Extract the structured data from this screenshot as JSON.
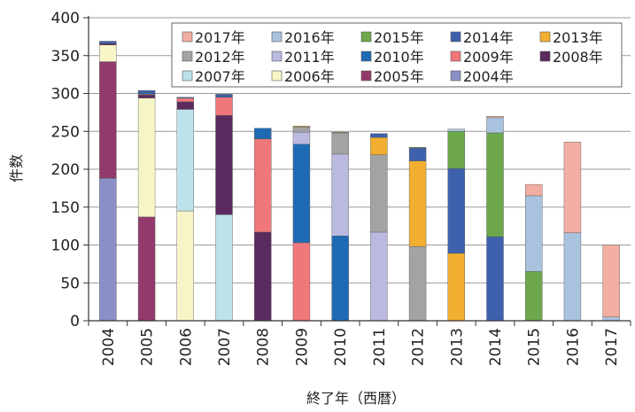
{
  "chart_data": {
    "type": "bar",
    "stacked": true,
    "title": "",
    "xlabel": "終了年（西暦）",
    "ylabel": "件数",
    "ylim": [
      0,
      400
    ],
    "yticks": [
      0,
      50,
      100,
      150,
      200,
      250,
      300,
      350,
      400
    ],
    "grid": true,
    "legend_position": "top-right",
    "categories": [
      "2004",
      "2005",
      "2006",
      "2007",
      "2008",
      "2009",
      "2010",
      "2011",
      "2012",
      "2013",
      "2014",
      "2015",
      "2016",
      "2017"
    ],
    "legend_order": [
      "2017年",
      "2016年",
      "2015年",
      "2014年",
      "2013年",
      "2012年",
      "2011年",
      "2010年",
      "2009年",
      "2008年",
      "2007年",
      "2006年",
      "2005年",
      "2004年"
    ],
    "series": [
      {
        "name": "2004年",
        "color": "#8b8fc7",
        "values": [
          188,
          0,
          0,
          0,
          0,
          0,
          0,
          0,
          0,
          0,
          0,
          0,
          0,
          0
        ]
      },
      {
        "name": "2005年",
        "color": "#923a6b",
        "values": [
          154,
          137,
          0,
          0,
          0,
          0,
          0,
          0,
          0,
          0,
          0,
          0,
          0,
          0
        ]
      },
      {
        "name": "2006年",
        "color": "#f7f5c7",
        "values": [
          22,
          157,
          145,
          0,
          0,
          0,
          0,
          0,
          0,
          0,
          0,
          0,
          0,
          0
        ]
      },
      {
        "name": "2007年",
        "color": "#bde3ea",
        "values": [
          0,
          0,
          134,
          140,
          0,
          0,
          0,
          0,
          0,
          0,
          0,
          0,
          0,
          0
        ]
      },
      {
        "name": "2008年",
        "color": "#5b2a5e",
        "values": [
          2,
          4,
          10,
          131,
          117,
          0,
          0,
          0,
          0,
          0,
          0,
          0,
          0,
          0
        ]
      },
      {
        "name": "2009年",
        "color": "#f0777a",
        "values": [
          0,
          1,
          5,
          24,
          123,
          103,
          0,
          0,
          0,
          0,
          0,
          0,
          0,
          0
        ]
      },
      {
        "name": "2010年",
        "color": "#1e6ab3",
        "values": [
          0,
          2,
          1,
          2,
          14,
          130,
          112,
          0,
          0,
          0,
          0,
          0,
          0,
          0
        ]
      },
      {
        "name": "2011年",
        "color": "#bab9df",
        "values": [
          0,
          0,
          0,
          0,
          0,
          16,
          108,
          117,
          0,
          0,
          0,
          0,
          0,
          0
        ]
      },
      {
        "name": "2012年",
        "color": "#a3a3a3",
        "values": [
          0,
          0,
          0,
          0,
          0,
          7,
          28,
          102,
          98,
          0,
          0,
          0,
          0,
          0
        ]
      },
      {
        "name": "2013年",
        "color": "#f2ae31",
        "values": [
          0,
          0,
          0,
          0,
          0,
          1,
          0,
          23,
          113,
          89,
          0,
          0,
          0,
          0
        ]
      },
      {
        "name": "2014年",
        "color": "#3e61ad",
        "values": [
          3,
          3,
          0,
          2,
          0,
          0,
          0,
          5,
          17,
          112,
          111,
          0,
          0,
          0
        ]
      },
      {
        "name": "2015年",
        "color": "#6ca84b",
        "values": [
          0,
          0,
          0,
          0,
          0,
          0,
          1,
          0,
          1,
          49,
          137,
          65,
          0,
          0
        ]
      },
      {
        "name": "2016年",
        "color": "#a9c2de",
        "values": [
          0,
          0,
          0,
          0,
          0,
          0,
          0,
          0,
          0,
          3,
          20,
          100,
          116,
          5
        ]
      },
      {
        "name": "2017年",
        "color": "#f2aea2",
        "values": [
          0,
          0,
          0,
          0,
          0,
          0,
          0,
          0,
          0,
          0,
          2,
          15,
          120,
          95
        ]
      }
    ]
  }
}
